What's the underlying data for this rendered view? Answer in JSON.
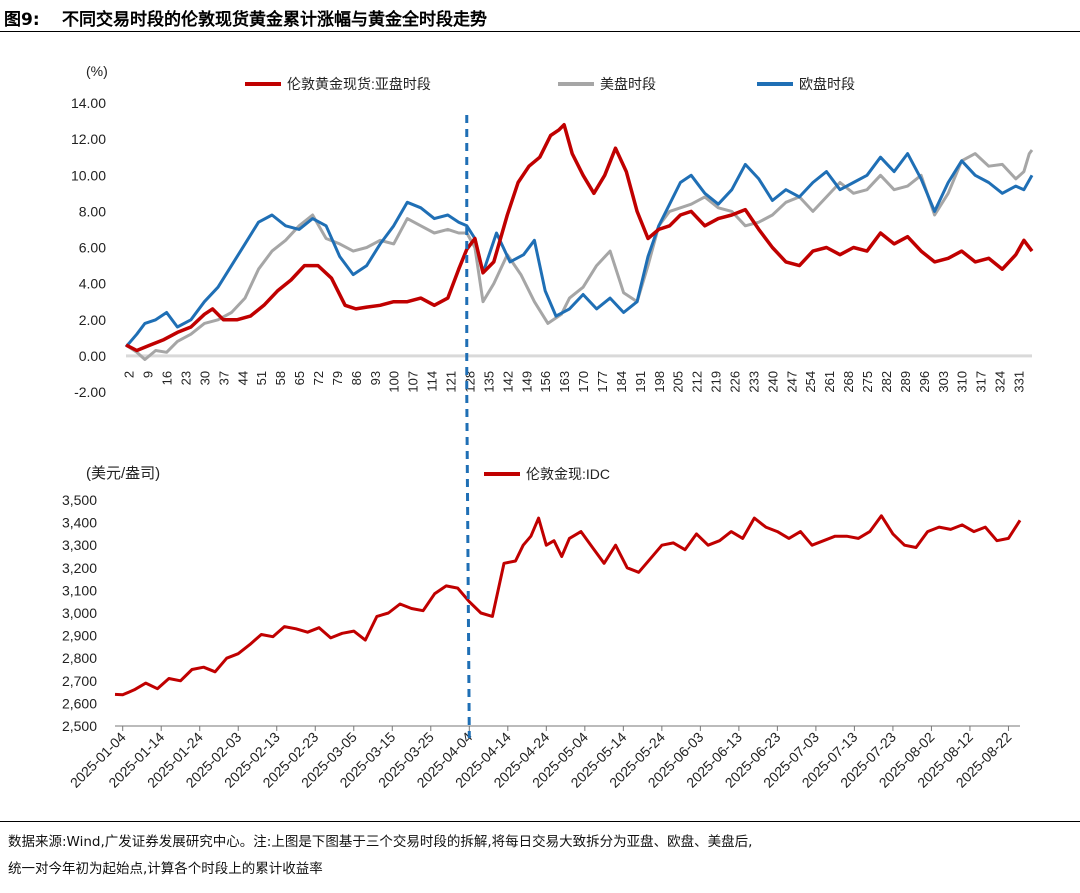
{
  "title": {
    "label": "图9:",
    "text": "不同交易时段的伦敦现货黄金累计涨幅与黄金全时段走势"
  },
  "source": {
    "line1": "数据来源:Wind,广发证券发展研究中心。注:上图是下图基于三个交易时段的拆解,将每日交易大致拆分为亚盘、欧盘、美盘后,",
    "line2": "统一对今年初为起始点,计算各个时段上的累计收益率"
  },
  "colors": {
    "red": "#c00000",
    "gray": "#a6a6a6",
    "blue": "#1f6fb5",
    "marker": "#1f6fb5"
  },
  "chart_data": [
    {
      "type": "line",
      "unit_label": "(%)",
      "ylim": [
        -2,
        14
      ],
      "yticks": [
        "-2.00",
        "0.00",
        "2.00",
        "4.00",
        "6.00",
        "8.00",
        "10.00",
        "12.00",
        "14.00"
      ],
      "x_range": [
        1,
        336
      ],
      "x_ticklabels": [
        "2",
        "9",
        "16",
        "23",
        "30",
        "37",
        "44",
        "51",
        "58",
        "65",
        "72",
        "79",
        "86",
        "93",
        "100",
        "107",
        "114",
        "121",
        "128",
        "135",
        "142",
        "149",
        "156",
        "163",
        "170",
        "177",
        "184",
        "191",
        "198",
        "205",
        "212",
        "219",
        "226",
        "233",
        "240",
        "247",
        "254",
        "261",
        "268",
        "275",
        "282",
        "289",
        "296",
        "303",
        "310",
        "317",
        "324",
        "331"
      ],
      "divider_x": 127,
      "series": [
        {
          "name": "伦敦黄金现货:亚盘时段",
          "color_key": "red",
          "x": [
            1,
            5,
            10,
            15,
            20,
            25,
            30,
            33,
            37,
            42,
            47,
            52,
            57,
            62,
            67,
            72,
            77,
            82,
            86,
            90,
            95,
            100,
            105,
            110,
            115,
            120,
            124,
            127,
            130,
            133,
            137,
            142,
            146,
            150,
            154,
            158,
            161,
            163,
            166,
            170,
            174,
            178,
            182,
            186,
            190,
            194,
            198,
            202,
            206,
            210,
            215,
            220,
            225,
            230,
            235,
            240,
            245,
            250,
            255,
            260,
            265,
            270,
            275,
            280,
            285,
            290,
            295,
            300,
            305,
            310,
            315,
            320,
            325,
            330,
            333,
            336
          ],
          "values": [
            0.6,
            0.3,
            0.6,
            0.9,
            1.3,
            1.6,
            2.3,
            2.6,
            2.0,
            2.0,
            2.2,
            2.8,
            3.6,
            4.2,
            5.0,
            5.0,
            4.3,
            2.8,
            2.6,
            2.7,
            2.8,
            3.0,
            3.0,
            3.2,
            2.8,
            3.2,
            4.8,
            5.9,
            6.5,
            4.6,
            5.2,
            7.8,
            9.6,
            10.5,
            11.0,
            12.2,
            12.5,
            12.8,
            11.2,
            10.0,
            9.0,
            10.0,
            11.5,
            10.2,
            8.0,
            6.5,
            7.0,
            7.2,
            7.8,
            8.0,
            7.2,
            7.6,
            7.8,
            8.1,
            7.0,
            6.0,
            5.2,
            5.0,
            5.8,
            6.0,
            5.6,
            6.0,
            5.8,
            6.8,
            6.2,
            6.6,
            5.8,
            5.2,
            5.4,
            5.8,
            5.2,
            5.4,
            4.8,
            5.6,
            6.4,
            5.8
          ]
        },
        {
          "name": "美盘时段",
          "color_key": "gray",
          "x": [
            1,
            5,
            8,
            12,
            16,
            20,
            25,
            30,
            35,
            40,
            45,
            50,
            55,
            60,
            65,
            70,
            75,
            80,
            85,
            90,
            95,
            100,
            105,
            110,
            115,
            120,
            124,
            127,
            130,
            133,
            137,
            142,
            147,
            152,
            157,
            162,
            165,
            170,
            175,
            180,
            185,
            190,
            194,
            198,
            202,
            206,
            210,
            215,
            220,
            225,
            230,
            235,
            240,
            245,
            250,
            255,
            260,
            265,
            270,
            275,
            280,
            285,
            290,
            295,
            300,
            305,
            310,
            315,
            320,
            325,
            330,
            333,
            335,
            336
          ],
          "values": [
            0.6,
            0.2,
            -0.2,
            0.3,
            0.2,
            0.8,
            1.2,
            1.8,
            2.0,
            2.4,
            3.2,
            4.8,
            5.8,
            6.4,
            7.2,
            7.8,
            6.5,
            6.2,
            5.8,
            6.0,
            6.4,
            6.2,
            7.6,
            7.2,
            6.8,
            7.0,
            6.8,
            6.8,
            6.0,
            3.0,
            4.0,
            5.6,
            4.5,
            3.0,
            1.8,
            2.3,
            3.2,
            3.8,
            5.0,
            5.8,
            3.5,
            3.0,
            5.0,
            7.2,
            8.0,
            8.2,
            8.4,
            8.8,
            8.2,
            8.0,
            7.2,
            7.4,
            7.8,
            8.5,
            8.8,
            8.0,
            8.8,
            9.6,
            9.0,
            9.2,
            10.0,
            9.2,
            9.4,
            10.0,
            7.8,
            9.0,
            10.8,
            11.2,
            10.5,
            10.6,
            9.8,
            10.2,
            11.2,
            11.4
          ]
        },
        {
          "name": "欧盘时段",
          "color_key": "blue",
          "x": [
            1,
            5,
            8,
            12,
            16,
            20,
            25,
            30,
            35,
            40,
            45,
            50,
            55,
            60,
            65,
            70,
            75,
            80,
            85,
            90,
            95,
            100,
            105,
            110,
            115,
            120,
            124,
            127,
            130,
            133,
            138,
            143,
            148,
            152,
            156,
            160,
            165,
            170,
            175,
            180,
            185,
            190,
            194,
            198,
            202,
            206,
            210,
            215,
            220,
            225,
            230,
            235,
            240,
            245,
            250,
            255,
            260,
            265,
            270,
            275,
            280,
            285,
            290,
            295,
            300,
            305,
            310,
            315,
            320,
            325,
            330,
            333,
            336
          ],
          "values": [
            0.5,
            1.2,
            1.8,
            2.0,
            2.4,
            1.6,
            2.0,
            3.0,
            3.8,
            5.0,
            6.2,
            7.4,
            7.8,
            7.2,
            7.0,
            7.6,
            7.2,
            5.5,
            4.5,
            5.0,
            6.2,
            7.2,
            8.5,
            8.2,
            7.6,
            7.8,
            7.4,
            7.2,
            6.5,
            4.6,
            6.8,
            5.2,
            5.6,
            6.4,
            3.6,
            2.2,
            2.6,
            3.4,
            2.6,
            3.2,
            2.4,
            3.0,
            5.5,
            7.2,
            8.4,
            9.6,
            10.0,
            9.0,
            8.4,
            9.2,
            10.6,
            9.8,
            8.6,
            9.2,
            8.8,
            9.6,
            10.2,
            9.2,
            9.6,
            10.0,
            11.0,
            10.2,
            11.2,
            9.8,
            8.0,
            9.6,
            10.8,
            10.0,
            9.6,
            9.0,
            9.4,
            9.2,
            10.0
          ]
        }
      ]
    },
    {
      "type": "line",
      "unit_label": "(美元/盎司)",
      "ylim": [
        2500,
        3500
      ],
      "yticks": [
        "2,500",
        "2,600",
        "2,700",
        "2,800",
        "2,900",
        "3,000",
        "3,100",
        "3,200",
        "3,300",
        "3,400",
        "3,500"
      ],
      "x_range": [
        "2025-01-02",
        "2025-08-25"
      ],
      "x_ticklabels": [
        "2025-01-04",
        "2025-01-14",
        "2025-01-24",
        "2025-02-03",
        "2025-02-13",
        "2025-02-23",
        "2025-03-05",
        "2025-03-15",
        "2025-03-25",
        "2025-04-04",
        "2025-04-14",
        "2025-04-24",
        "2025-05-04",
        "2025-05-14",
        "2025-05-24",
        "2025-06-03",
        "2025-06-13",
        "2025-06-23",
        "2025-07-03",
        "2025-07-13",
        "2025-07-23",
        "2025-08-02",
        "2025-08-12",
        "2025-08-22"
      ],
      "divider_x": "2025-04-04",
      "series": [
        {
          "name": "伦敦金现:IDC",
          "color_key": "red",
          "x": [
            0,
            2,
            5,
            8,
            11,
            14,
            17,
            20,
            23,
            26,
            29,
            32,
            35,
            38,
            41,
            44,
            47,
            50,
            53,
            56,
            59,
            62,
            65,
            68,
            71,
            74,
            77,
            80,
            83,
            86,
            89,
            92,
            95,
            98,
            101,
            104,
            106,
            108,
            110,
            112,
            114,
            116,
            118,
            121,
            124,
            127,
            130,
            133,
            136,
            139,
            142,
            145,
            148,
            151,
            154,
            157,
            160,
            163,
            166,
            169,
            172,
            175,
            178,
            181,
            184,
            187,
            190,
            193,
            196,
            199,
            202,
            205,
            208,
            211,
            214,
            217,
            220,
            223,
            226,
            229,
            232,
            235
          ],
          "values": [
            2640,
            2638,
            2660,
            2690,
            2665,
            2710,
            2700,
            2750,
            2760,
            2740,
            2800,
            2820,
            2860,
            2905,
            2895,
            2940,
            2930,
            2915,
            2935,
            2890,
            2910,
            2920,
            2880,
            2985,
            3000,
            3040,
            3020,
            3010,
            3085,
            3120,
            3110,
            3050,
            3000,
            2985,
            3220,
            3230,
            3300,
            3340,
            3420,
            3300,
            3320,
            3250,
            3330,
            3360,
            3290,
            3220,
            3300,
            3200,
            3180,
            3240,
            3300,
            3310,
            3280,
            3350,
            3300,
            3320,
            3360,
            3330,
            3420,
            3380,
            3360,
            3330,
            3360,
            3300,
            3320,
            3340,
            3340,
            3330,
            3360,
            3430,
            3350,
            3300,
            3290,
            3360,
            3380,
            3370,
            3390,
            3360,
            3380,
            3320,
            3330,
            3410
          ]
        }
      ]
    }
  ]
}
